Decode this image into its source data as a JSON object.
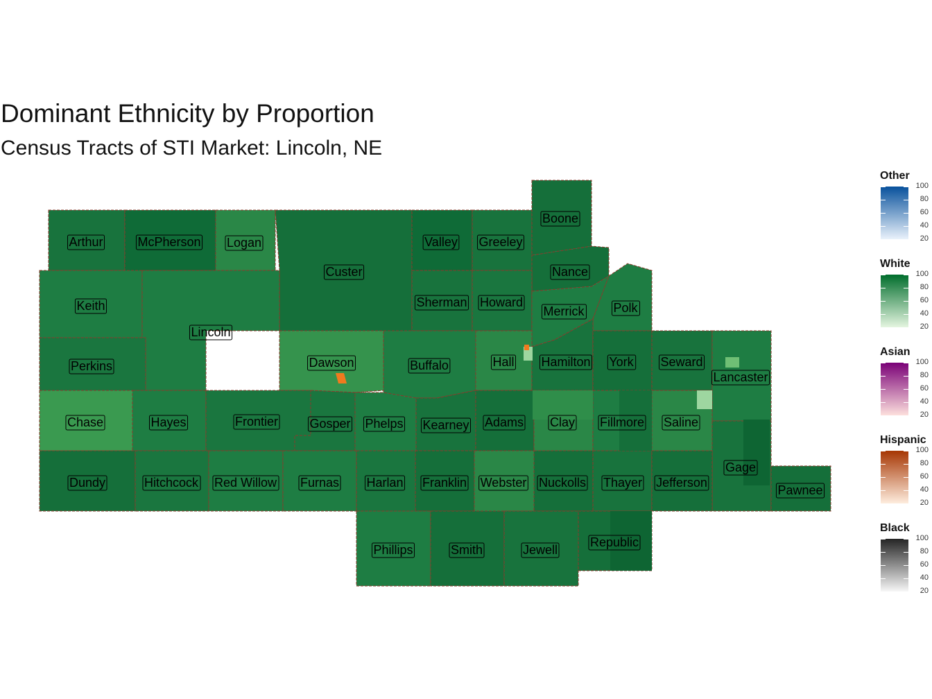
{
  "title": "Dominant Ethnicity by Proportion",
  "subtitle": "Census Tracts of STI Market: Lincoln, NE",
  "colors": {
    "white_dark": "#0f6b37",
    "white_mid": "#1e7d43",
    "white_light": "#3a9a50",
    "white_pale": "#9ed6a0",
    "hispanic": "#f07a1e",
    "border": "#8b3a2b"
  },
  "counties": [
    {
      "name": "Arthur",
      "fill": "#18733d"
    },
    {
      "name": "McPherson",
      "fill": "#0f6b37"
    },
    {
      "name": "Logan",
      "fill": "#2a8747"
    },
    {
      "name": "Custer",
      "fill": "#156f3a"
    },
    {
      "name": "Valley",
      "fill": "#0f6b37"
    },
    {
      "name": "Greeley",
      "fill": "#18733d"
    },
    {
      "name": "Boone",
      "fill": "#156f3a"
    },
    {
      "name": "Nance",
      "fill": "#156f3a"
    },
    {
      "name": "Keith",
      "fill": "#1e7d43"
    },
    {
      "name": "Lincoln",
      "fill": "#1e7d43"
    },
    {
      "name": "Sherman",
      "fill": "#18733d"
    },
    {
      "name": "Howard",
      "fill": "#1a763f"
    },
    {
      "name": "Merrick",
      "fill": "#1e7d43"
    },
    {
      "name": "Polk",
      "fill": "#1e7d43"
    },
    {
      "name": "Perkins",
      "fill": "#1a763f"
    },
    {
      "name": "Dawson",
      "fill": "#35934d"
    },
    {
      "name": "Buffalo",
      "fill": "#1e7d43"
    },
    {
      "name": "Hall",
      "fill": "#2a8747"
    },
    {
      "name": "Hamilton",
      "fill": "#18733d"
    },
    {
      "name": "York",
      "fill": "#156f3a"
    },
    {
      "name": "Seward",
      "fill": "#18733d"
    },
    {
      "name": "Lancaster",
      "fill": "#1e7d43"
    },
    {
      "name": "Chase",
      "fill": "#3a9a50"
    },
    {
      "name": "Hayes",
      "fill": "#1e7d43"
    },
    {
      "name": "Frontier",
      "fill": "#1a763f"
    },
    {
      "name": "Gosper",
      "fill": "#1a763f"
    },
    {
      "name": "Phelps",
      "fill": "#1e7d43"
    },
    {
      "name": "Kearney",
      "fill": "#18733d"
    },
    {
      "name": "Adams",
      "fill": "#156f3a"
    },
    {
      "name": "Clay",
      "fill": "#2a8747"
    },
    {
      "name": "Fillmore",
      "fill": "#1e7d43"
    },
    {
      "name": "Saline",
      "fill": "#2a8747"
    },
    {
      "name": "Gage",
      "fill": "#18733d"
    },
    {
      "name": "Dundy",
      "fill": "#156f3a"
    },
    {
      "name": "Hitchcock",
      "fill": "#1a763f"
    },
    {
      "name": "Red Willow",
      "fill": "#1e7d43"
    },
    {
      "name": "Furnas",
      "fill": "#1e7d43"
    },
    {
      "name": "Harlan",
      "fill": "#1a763f"
    },
    {
      "name": "Franklin",
      "fill": "#156f3a"
    },
    {
      "name": "Webster",
      "fill": "#2a8747"
    },
    {
      "name": "Nuckolls",
      "fill": "#156f3a"
    },
    {
      "name": "Thayer",
      "fill": "#18733d"
    },
    {
      "name": "Jefferson",
      "fill": "#156f3a"
    },
    {
      "name": "Pawnee",
      "fill": "#156f3a"
    },
    {
      "name": "Phillips",
      "fill": "#1e7d43"
    },
    {
      "name": "Smith",
      "fill": "#156f3a"
    },
    {
      "name": "Jewell",
      "fill": "#18733d"
    },
    {
      "name": "Republic",
      "fill": "#156f3a"
    }
  ],
  "legend": [
    {
      "title": "Other",
      "color_high": "#08519c",
      "color_low": "#eaf2fb",
      "ticks": [
        "100",
        "80",
        "60",
        "40",
        "20"
      ]
    },
    {
      "title": "White",
      "color_high": "#006d2c",
      "color_low": "#e5f5e0",
      "ticks": [
        "100",
        "80",
        "60",
        "40",
        "20"
      ]
    },
    {
      "title": "Asian",
      "color_high": "#7a0177",
      "color_low": "#fde0dd",
      "ticks": [
        "100",
        "80",
        "60",
        "40",
        "20"
      ]
    },
    {
      "title": "Hispanic",
      "color_high": "#a63603",
      "color_low": "#feedde",
      "ticks": [
        "100",
        "80",
        "60",
        "40",
        "20"
      ]
    },
    {
      "title": "Black",
      "color_high": "#252525",
      "color_low": "#f7f7f7",
      "ticks": [
        "100",
        "80",
        "60",
        "40",
        "20"
      ]
    }
  ]
}
